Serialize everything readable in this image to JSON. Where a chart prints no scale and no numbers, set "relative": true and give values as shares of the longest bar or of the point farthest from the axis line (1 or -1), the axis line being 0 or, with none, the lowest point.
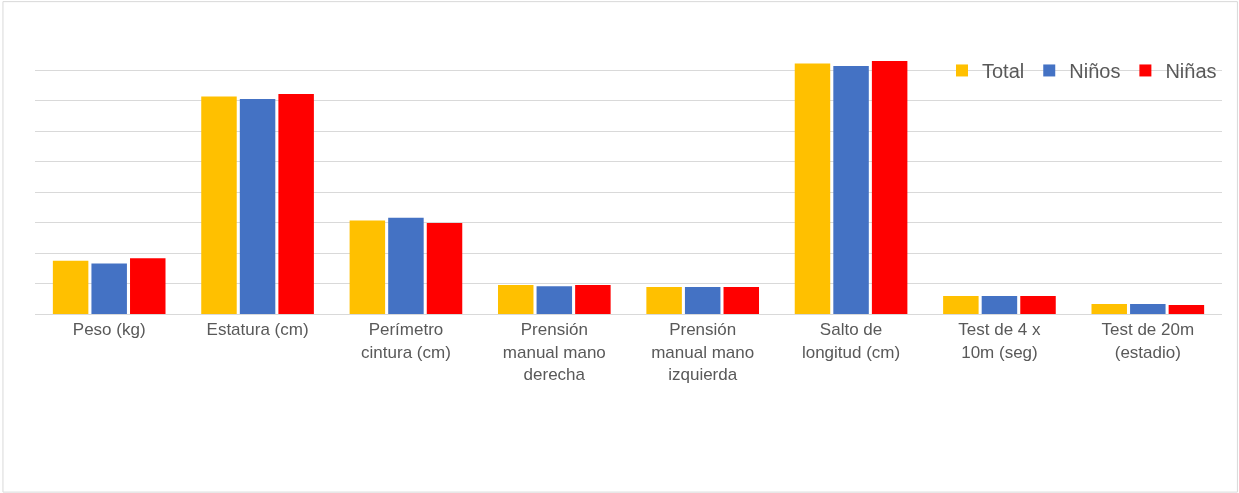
{
  "chart_data": {
    "type": "bar",
    "relative": true,
    "grid": "y",
    "legend": "top right",
    "categories": [
      "Peso (kg)",
      "Estatura (cm)",
      "Perímetro cintura (cm)",
      "Prensión manual mano derecha",
      "Prensión manual mano izquierda",
      "Salto de longitud (cm)",
      "Test de 4 x 10m (seg)",
      "Test de 20m (estadio)"
    ],
    "series": [
      {
        "name": "Total",
        "color": "#ffc000",
        "values": [
          0.21,
          0.86,
          0.37,
          0.115,
          0.107,
          0.99,
          0.071,
          0.04
        ]
      },
      {
        "name": "Niños",
        "color": "#4472c4",
        "values": [
          0.2,
          0.85,
          0.38,
          0.11,
          0.107,
          0.98,
          0.071,
          0.04
        ]
      },
      {
        "name": "Niñas",
        "color": "#ff0000",
        "values": [
          0.22,
          0.87,
          0.36,
          0.115,
          0.107,
          1,
          0.071,
          0.036
        ]
      }
    ]
  }
}
